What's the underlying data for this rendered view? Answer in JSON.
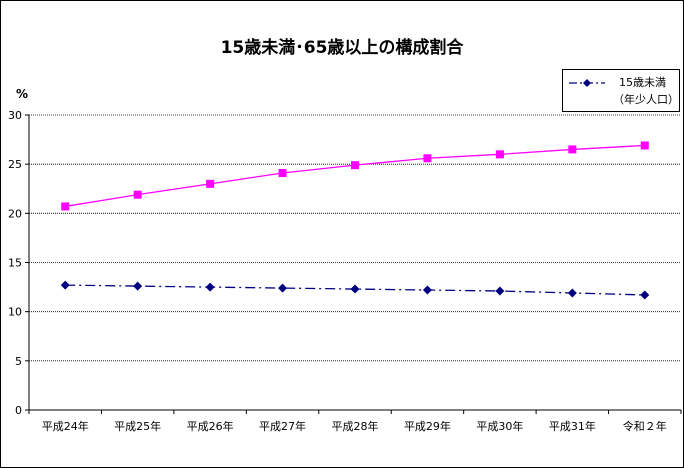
{
  "chart_data": {
    "type": "line",
    "title": "15歳未満･65歳以上の構成割合",
    "ylabel": "%",
    "xlabel": "",
    "categories": [
      "平成24年",
      "平成25年",
      "平成26年",
      "平成27年",
      "平成28年",
      "平成29年",
      "平成30年",
      "平成31年",
      "令和２年"
    ],
    "ylim": [
      0,
      30
    ],
    "yticks": [
      0,
      5,
      10,
      15,
      20,
      25,
      30
    ],
    "grid": true,
    "legend_position": "top-right",
    "series": [
      {
        "name": "15歳未満",
        "name_line2": "（年少人口）",
        "color": "#000080",
        "marker": "diamond",
        "dash": "dash-dot",
        "values": [
          12.7,
          12.6,
          12.5,
          12.4,
          12.3,
          12.2,
          12.1,
          11.9,
          11.7
        ]
      },
      {
        "name": "",
        "color": "#FF00FF",
        "marker": "square",
        "dash": "solid",
        "values": [
          20.7,
          21.9,
          23.0,
          24.1,
          24.9,
          25.6,
          26.0,
          26.5,
          26.9
        ]
      }
    ]
  }
}
